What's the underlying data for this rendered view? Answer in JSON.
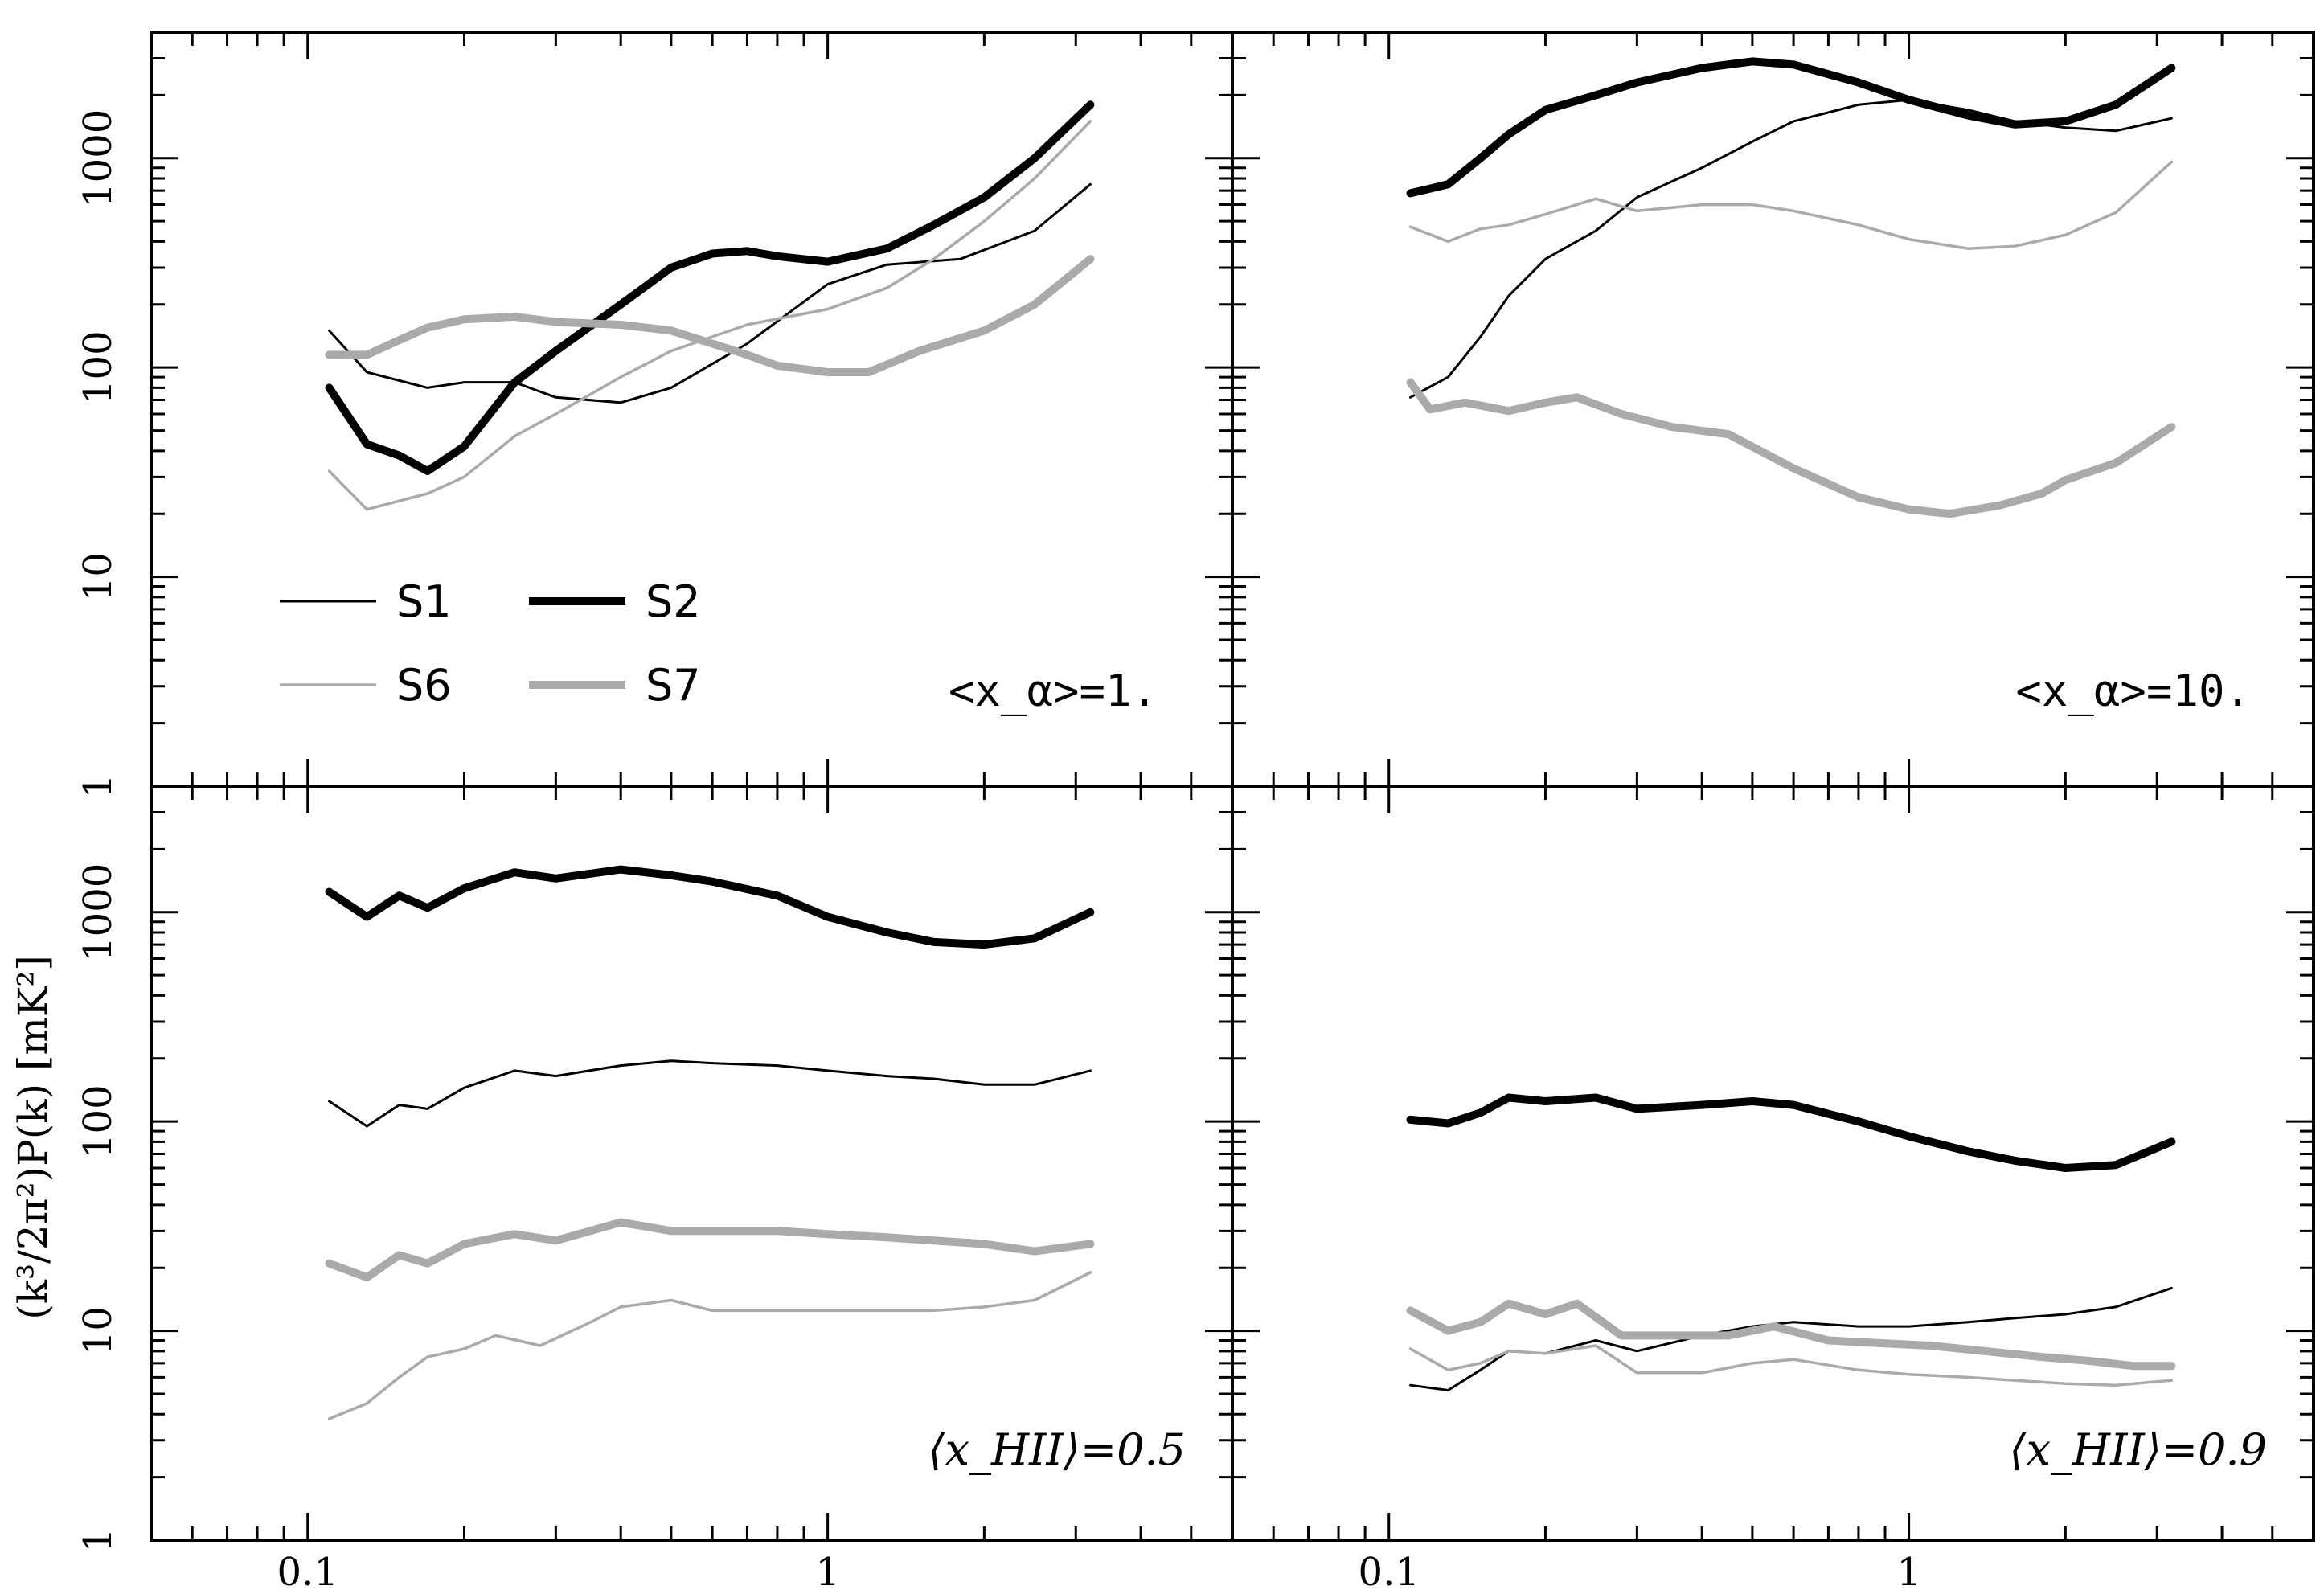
{
  "y_axis_label": "(k³/2π²)P(k)  [mK²]",
  "chart_data": [
    {
      "type": "line",
      "panel": "top-left",
      "annotation": "<x_α>=1.",
      "xscale": "log",
      "yscale": "log",
      "xlim": [
        0.05,
        6
      ],
      "ylim": [
        1,
        4000
      ],
      "x_tick_labels": [
        "0.1",
        "1"
      ],
      "y_tick_labels": [
        "1",
        "10",
        "100",
        "1000"
      ],
      "legend": {
        "position": "lower-left",
        "entries": [
          {
            "name": "S1",
            "color": "#000000",
            "width": "thin"
          },
          {
            "name": "S2",
            "color": "#000000",
            "width": "thick"
          },
          {
            "name": "S6",
            "color": "#aaaaaa",
            "width": "thin"
          },
          {
            "name": "S7",
            "color": "#aaaaaa",
            "width": "thick"
          }
        ]
      },
      "series": [
        {
          "name": "S1",
          "x": [
            0.11,
            0.13,
            0.17,
            0.2,
            0.25,
            0.3,
            0.4,
            0.5,
            0.7,
            1.0,
            1.3,
            1.8,
            2.5,
            3.2
          ],
          "y": [
            150,
            95,
            80,
            85,
            85,
            72,
            68,
            80,
            130,
            250,
            310,
            330,
            450,
            750
          ]
        },
        {
          "name": "S2",
          "x": [
            0.11,
            0.13,
            0.15,
            0.17,
            0.2,
            0.25,
            0.3,
            0.4,
            0.5,
            0.6,
            0.7,
            0.8,
            1.0,
            1.3,
            1.6,
            2.0,
            2.5,
            3.2
          ],
          "y": [
            80,
            43,
            38,
            32,
            42,
            85,
            120,
            200,
            300,
            350,
            360,
            340,
            320,
            370,
            480,
            650,
            1000,
            1800
          ]
        },
        {
          "name": "S6",
          "x": [
            0.11,
            0.13,
            0.17,
            0.2,
            0.25,
            0.3,
            0.4,
            0.5,
            0.7,
            1.0,
            1.3,
            1.6,
            2.0,
            2.5,
            3.2
          ],
          "y": [
            32,
            21,
            25,
            30,
            47,
            60,
            90,
            120,
            160,
            190,
            240,
            330,
            500,
            800,
            1500
          ]
        },
        {
          "name": "S7",
          "x": [
            0.11,
            0.13,
            0.15,
            0.17,
            0.2,
            0.25,
            0.3,
            0.4,
            0.5,
            0.6,
            0.7,
            0.8,
            1.0,
            1.2,
            1.5,
            2.0,
            2.5,
            3.2
          ],
          "y": [
            115,
            115,
            135,
            155,
            170,
            175,
            165,
            160,
            150,
            130,
            115,
            102,
            95,
            95,
            120,
            150,
            200,
            330
          ]
        }
      ]
    },
    {
      "type": "line",
      "panel": "top-right",
      "annotation": "<x_α>=10.",
      "xscale": "log",
      "yscale": "log",
      "xlim": [
        0.05,
        6
      ],
      "ylim": [
        1,
        4000
      ],
      "x_tick_labels": [
        "0.1",
        "1"
      ],
      "series": [
        {
          "name": "S1",
          "x": [
            0.11,
            0.13,
            0.15,
            0.17,
            0.2,
            0.25,
            0.3,
            0.4,
            0.5,
            0.6,
            0.8,
            1.0,
            1.3,
            1.6,
            2.0,
            2.5,
            3.2
          ],
          "y": [
            72,
            90,
            140,
            220,
            330,
            450,
            650,
            900,
            1200,
            1500,
            1800,
            1900,
            1700,
            1500,
            1400,
            1350,
            1550
          ]
        },
        {
          "name": "S2",
          "x": [
            0.11,
            0.13,
            0.15,
            0.17,
            0.2,
            0.25,
            0.3,
            0.4,
            0.5,
            0.6,
            0.8,
            1.0,
            1.3,
            1.6,
            2.0,
            2.5,
            3.2
          ],
          "y": [
            680,
            750,
            1000,
            1300,
            1700,
            2000,
            2300,
            2700,
            2900,
            2800,
            2300,
            1900,
            1600,
            1450,
            1500,
            1800,
            2700
          ]
        },
        {
          "name": "S6",
          "x": [
            0.11,
            0.13,
            0.15,
            0.17,
            0.2,
            0.25,
            0.3,
            0.4,
            0.5,
            0.6,
            0.8,
            1.0,
            1.3,
            1.6,
            2.0,
            2.5,
            3.2
          ],
          "y": [
            470,
            400,
            460,
            480,
            540,
            640,
            560,
            600,
            600,
            560,
            480,
            410,
            370,
            380,
            430,
            550,
            960
          ]
        },
        {
          "name": "S7",
          "x": [
            0.11,
            0.12,
            0.14,
            0.17,
            0.2,
            0.23,
            0.28,
            0.35,
            0.45,
            0.6,
            0.8,
            1.0,
            1.2,
            1.5,
            1.8,
            2.0,
            2.5,
            3.2
          ],
          "y": [
            85,
            63,
            68,
            62,
            68,
            72,
            60,
            52,
            48,
            33,
            24,
            21,
            20,
            22,
            25,
            29,
            35,
            52
          ]
        }
      ]
    },
    {
      "type": "line",
      "panel": "bottom-left",
      "annotation": "⟨x_HII⟩=0.5",
      "xscale": "log",
      "yscale": "log",
      "xlim": [
        0.05,
        6
      ],
      "ylim": [
        1,
        4000
      ],
      "x_tick_labels": [
        "0.1",
        "1"
      ],
      "y_tick_labels": [
        "1",
        "10",
        "100",
        "1000"
      ],
      "series": [
        {
          "name": "S1",
          "x": [
            0.11,
            0.13,
            0.15,
            0.17,
            0.2,
            0.25,
            0.3,
            0.4,
            0.5,
            0.6,
            0.8,
            1.0,
            1.3,
            1.6,
            2.0,
            2.5,
            3.2
          ],
          "y": [
            125,
            95,
            120,
            115,
            145,
            175,
            165,
            185,
            195,
            190,
            185,
            175,
            165,
            160,
            150,
            150,
            175
          ]
        },
        {
          "name": "S2",
          "x": [
            0.11,
            0.13,
            0.15,
            0.17,
            0.2,
            0.25,
            0.3,
            0.4,
            0.5,
            0.6,
            0.8,
            1.0,
            1.3,
            1.6,
            2.0,
            2.5,
            3.2
          ],
          "y": [
            1250,
            950,
            1200,
            1050,
            1300,
            1550,
            1450,
            1600,
            1500,
            1400,
            1200,
            950,
            800,
            720,
            700,
            750,
            1000
          ]
        },
        {
          "name": "S6",
          "x": [
            0.11,
            0.13,
            0.15,
            0.17,
            0.2,
            0.23,
            0.28,
            0.35,
            0.4,
            0.5,
            0.6,
            0.8,
            1.0,
            1.3,
            1.6,
            2.0,
            2.5,
            3.2
          ],
          "y": [
            3.8,
            4.5,
            6,
            7.5,
            8.2,
            9.5,
            8.5,
            11,
            13,
            14,
            12.5,
            12.5,
            12.5,
            12.5,
            12.5,
            13,
            14,
            19
          ]
        },
        {
          "name": "S7",
          "x": [
            0.11,
            0.13,
            0.15,
            0.17,
            0.2,
            0.25,
            0.3,
            0.4,
            0.5,
            0.6,
            0.8,
            1.0,
            1.3,
            1.6,
            2.0,
            2.5,
            3.2
          ],
          "y": [
            21,
            18,
            23,
            21,
            26,
            29,
            27,
            33,
            30,
            30,
            30,
            29,
            28,
            27,
            26,
            24,
            26
          ]
        }
      ]
    },
    {
      "type": "line",
      "panel": "bottom-right",
      "annotation": "⟨x_HII⟩=0.9",
      "xscale": "log",
      "yscale": "log",
      "xlim": [
        0.05,
        6
      ],
      "ylim": [
        1,
        4000
      ],
      "x_tick_labels": [
        "0.1",
        "1"
      ],
      "series": [
        {
          "name": "S1",
          "x": [
            0.11,
            0.13,
            0.15,
            0.17,
            0.2,
            0.25,
            0.3,
            0.4,
            0.5,
            0.6,
            0.8,
            1.0,
            1.3,
            1.6,
            2.0,
            2.5,
            3.2
          ],
          "y": [
            5.5,
            5.2,
            6.5,
            8,
            7.8,
            9,
            8,
            9.5,
            10.5,
            11,
            10.5,
            10.5,
            11,
            11.5,
            12,
            13,
            16
          ]
        },
        {
          "name": "S2",
          "x": [
            0.11,
            0.13,
            0.15,
            0.17,
            0.2,
            0.25,
            0.3,
            0.4,
            0.5,
            0.6,
            0.8,
            1.0,
            1.3,
            1.6,
            2.0,
            2.5,
            3.2
          ],
          "y": [
            102,
            98,
            110,
            130,
            125,
            130,
            115,
            120,
            125,
            120,
            100,
            85,
            72,
            65,
            60,
            62,
            80
          ]
        },
        {
          "name": "S6",
          "x": [
            0.11,
            0.13,
            0.15,
            0.17,
            0.2,
            0.25,
            0.3,
            0.4,
            0.5,
            0.6,
            0.8,
            1.0,
            1.3,
            1.6,
            2.0,
            2.5,
            3.2
          ],
          "y": [
            8.2,
            6.5,
            7,
            8,
            7.8,
            8.5,
            6.3,
            6.3,
            7,
            7.3,
            6.5,
            6.2,
            6,
            5.8,
            5.6,
            5.5,
            5.8
          ]
        },
        {
          "name": "S7",
          "x": [
            0.11,
            0.13,
            0.15,
            0.17,
            0.2,
            0.23,
            0.28,
            0.35,
            0.45,
            0.55,
            0.7,
            0.9,
            1.1,
            1.4,
            1.8,
            2.2,
            2.7,
            3.2
          ],
          "y": [
            12.5,
            10,
            11,
            13.5,
            12,
            13.5,
            9.5,
            9.5,
            9.5,
            10.5,
            9,
            8.7,
            8.5,
            8,
            7.5,
            7.2,
            6.8,
            6.8
          ]
        }
      ]
    }
  ]
}
